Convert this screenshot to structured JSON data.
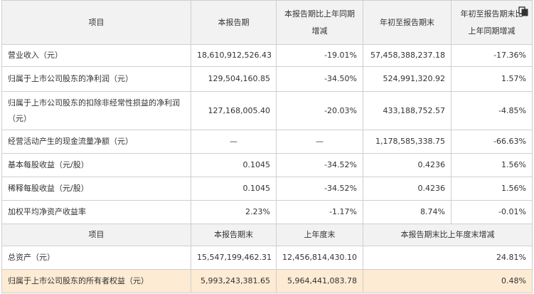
{
  "table": {
    "header": {
      "item": "项目",
      "period": "本报告期",
      "change_line1": "本报告期比上年同期",
      "change_line2": "增减",
      "ytd": "年初至报告期末",
      "ytd_change_line1": "年初至报告期末比",
      "ytd_change_line2": "上年同期增减"
    },
    "rows": [
      {
        "item": "营业收入（元）",
        "period": "18,610,912,526.43",
        "change": "-19.01%",
        "ytd": "57,458,388,237.18",
        "ytd_change": "-17.36%"
      },
      {
        "item": "归属于上市公司股东的净利润（元）",
        "period": "129,504,160.85",
        "change": "-34.50%",
        "ytd": "524,991,320.92",
        "ytd_change": "1.57%"
      },
      {
        "item": "归属于上市公司股东的扣除非经常性损益的净利润（元）",
        "period": "127,168,005.40",
        "change": "-20.03%",
        "ytd": "433,188,752.57",
        "ytd_change": "-4.85%"
      },
      {
        "item": "经营活动产生的现金流量净额（元）",
        "period": "—",
        "change": "—",
        "ytd": "1,178,585,338.75",
        "ytd_change": "-66.63%"
      },
      {
        "item": "基本每股收益（元/股）",
        "period": "0.1045",
        "change": "-34.52%",
        "ytd": "0.4236",
        "ytd_change": "1.56%"
      },
      {
        "item": "稀释每股收益（元/股）",
        "period": "0.1045",
        "change": "-34.52%",
        "ytd": "0.4236",
        "ytd_change": "1.56%"
      },
      {
        "item": "加权平均净资产收益率",
        "period": "2.23%",
        "change": "-1.17%",
        "ytd": "8.74%",
        "ytd_change": "-0.01%"
      }
    ],
    "header2": {
      "item": "项目",
      "period_end": "本报告期末",
      "last_year_end": "上年度末",
      "change": "本报告期末比上年度末增减"
    },
    "rows2": [
      {
        "item": "总资产（元）",
        "period_end": "15,547,199,462.31",
        "last_year_end": "12,456,814,430.10",
        "change": "24.81%"
      },
      {
        "item": "归属于上市公司股东的所有者权益（元）",
        "period_end": "5,993,243,381.65",
        "last_year_end": "5,964,441,083.78",
        "change": "0.48%"
      }
    ]
  },
  "icons": {
    "copy": "copy-icon"
  },
  "colors": {
    "header_bg": "#f2f2f2",
    "highlight_bg": "#fdebd3",
    "border": "#cfcfcf"
  }
}
